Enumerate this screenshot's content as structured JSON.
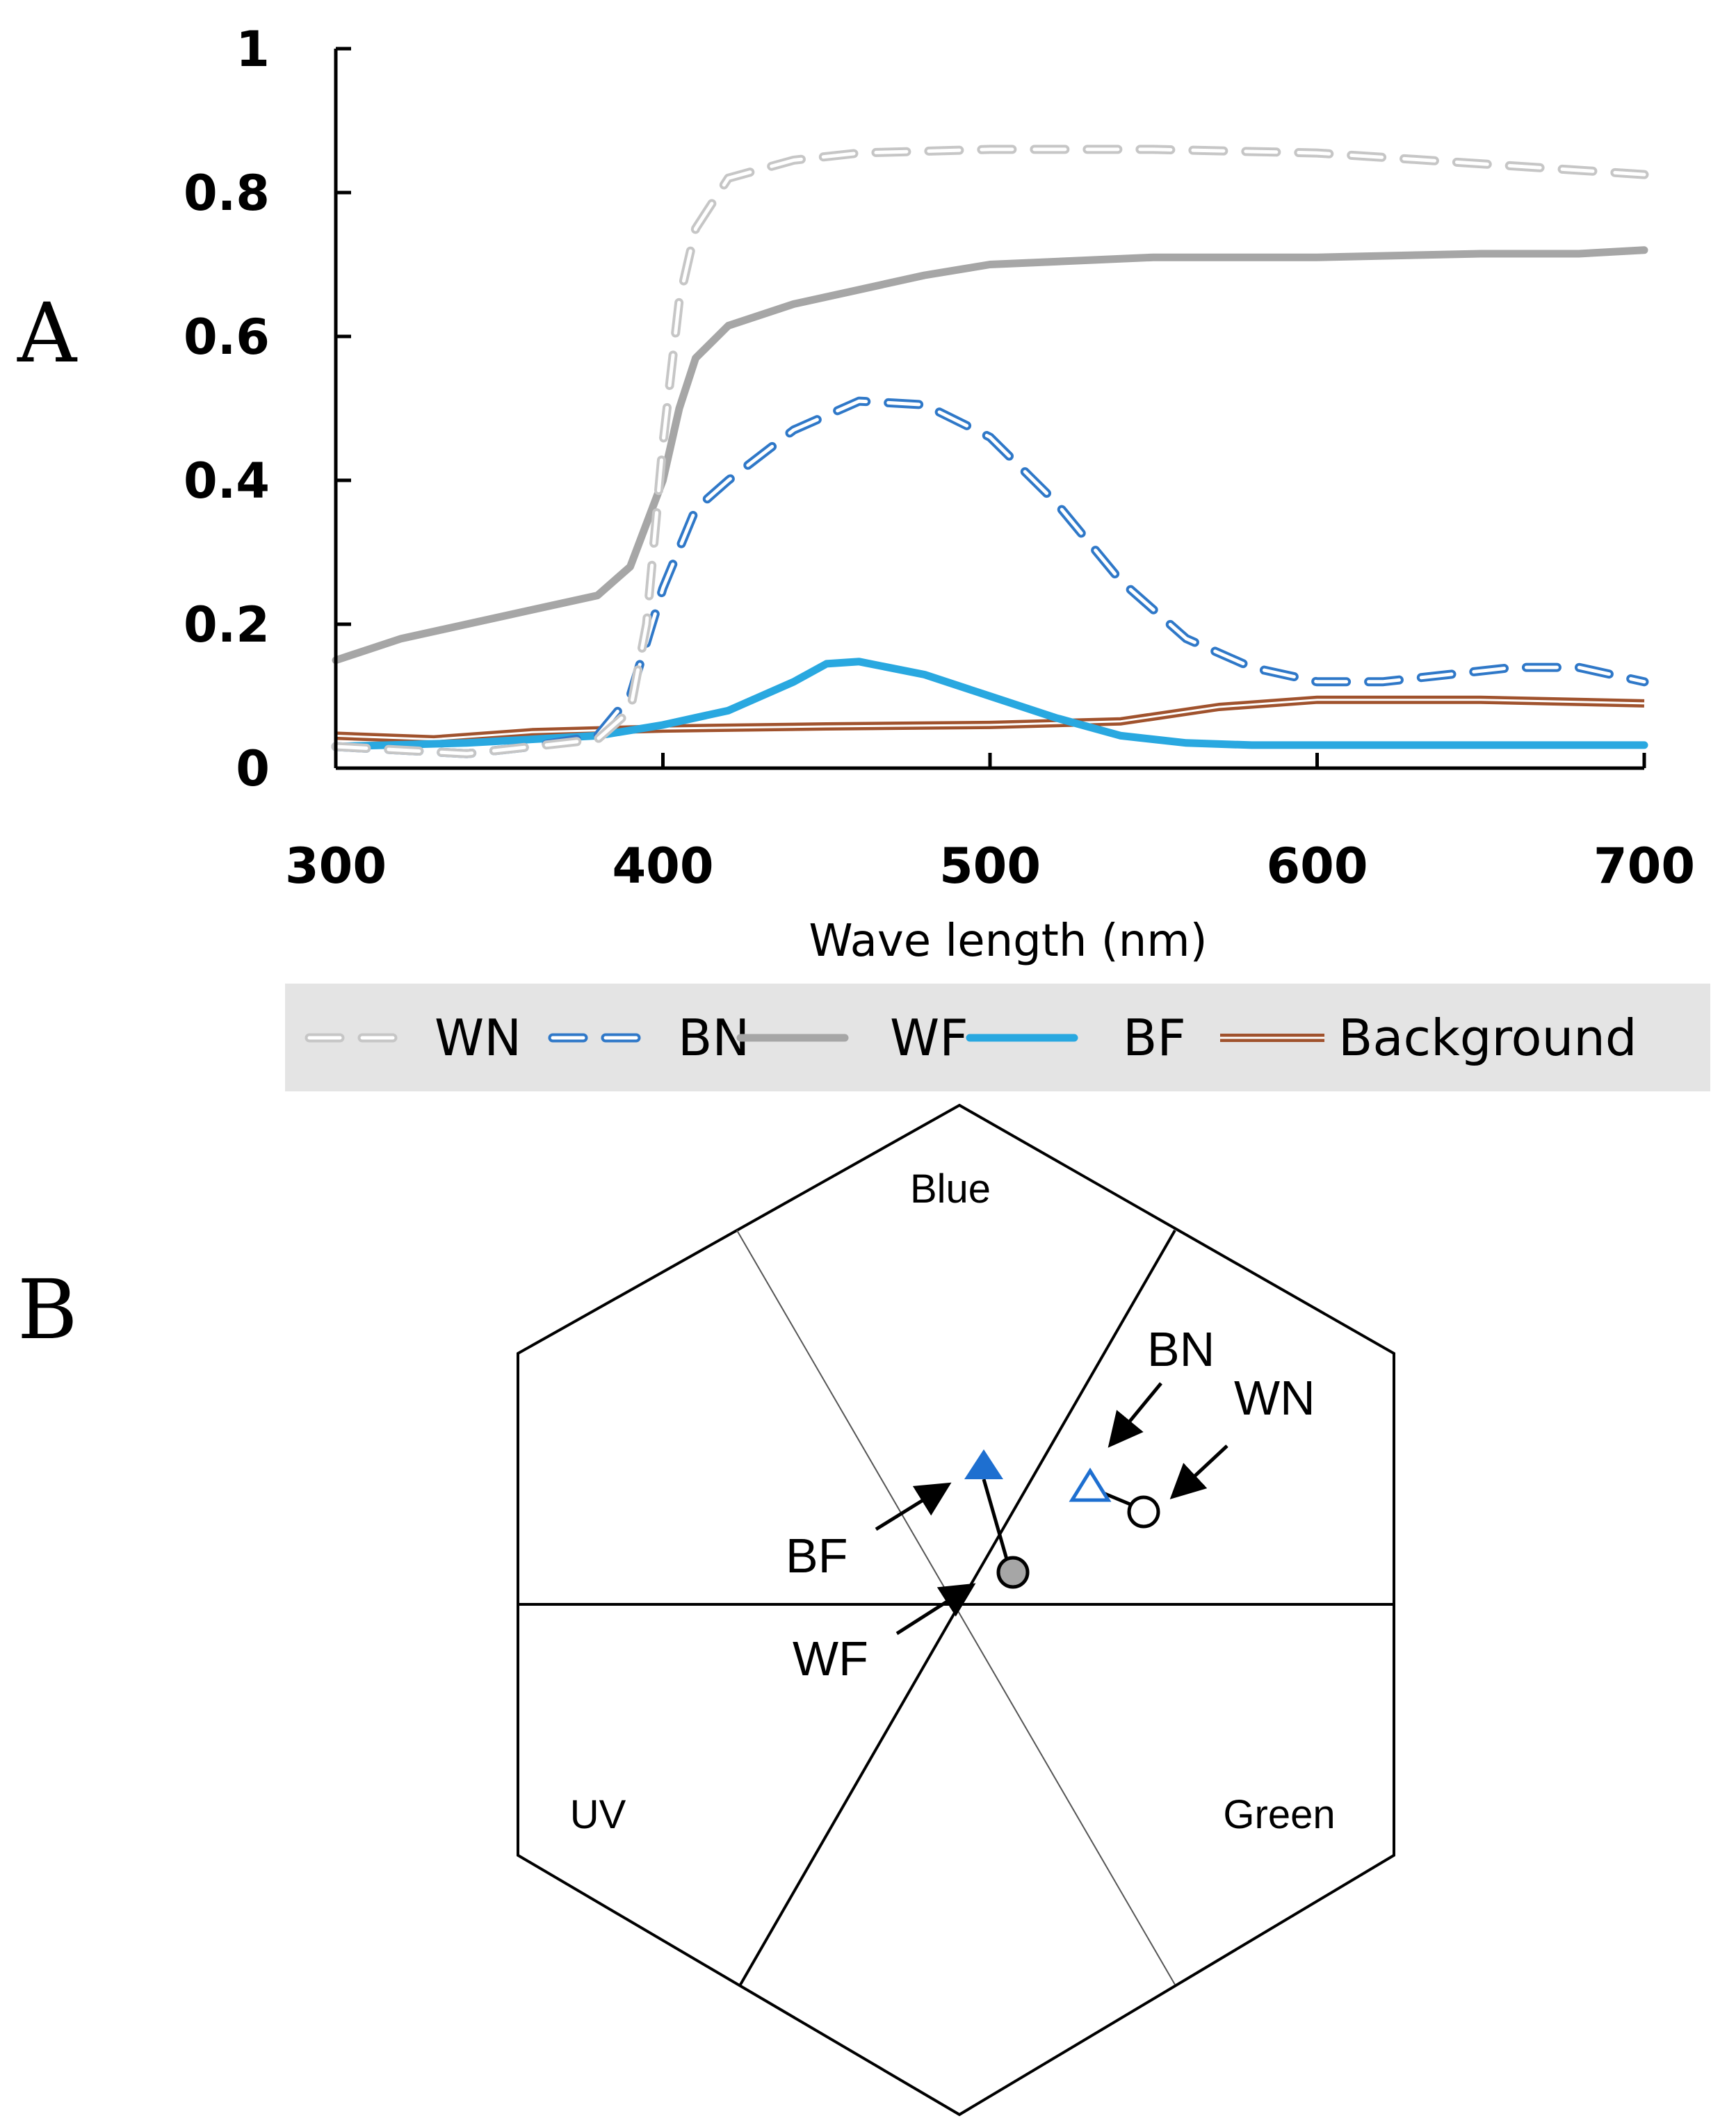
{
  "panels": {
    "a": "A",
    "b": "B"
  },
  "colors": {
    "WN": "#c6c6c6",
    "BN": "#2f78c8",
    "WF": "#a6a6a6",
    "BF": "#29a8e0",
    "Background": "#a0522d",
    "legend_bg": "#e4e4e4"
  },
  "chart_data": [
    {
      "type": "line",
      "title": "",
      "xlabel": "Wave length (nm)",
      "ylabel": "",
      "xlim": [
        300,
        700
      ],
      "ylim": [
        0,
        1
      ],
      "xticks": [
        300,
        400,
        500,
        600,
        700
      ],
      "yticks": [
        0,
        0.2,
        0.4,
        0.6,
        0.8,
        1
      ],
      "ytick_labels": [
        "0",
        "0.2",
        "0.4",
        "0.6",
        "0.8",
        "1"
      ],
      "legend_position": "bottom",
      "series": [
        {
          "name": "WN",
          "style": "dashed-outline",
          "x": [
            300,
            320,
            340,
            360,
            380,
            390,
            395,
            400,
            405,
            410,
            420,
            440,
            460,
            500,
            550,
            600,
            650,
            700
          ],
          "y": [
            0.03,
            0.025,
            0.02,
            0.03,
            0.04,
            0.08,
            0.2,
            0.45,
            0.65,
            0.75,
            0.82,
            0.845,
            0.855,
            0.86,
            0.86,
            0.855,
            0.84,
            0.825
          ]
        },
        {
          "name": "BN",
          "style": "dashed-outline",
          "x": [
            300,
            320,
            340,
            360,
            380,
            390,
            400,
            410,
            420,
            440,
            460,
            480,
            500,
            520,
            540,
            560,
            580,
            600,
            620,
            640,
            660,
            680,
            700
          ],
          "y": [
            0.03,
            0.025,
            0.02,
            0.03,
            0.045,
            0.1,
            0.25,
            0.36,
            0.4,
            0.47,
            0.51,
            0.505,
            0.46,
            0.37,
            0.26,
            0.18,
            0.14,
            0.12,
            0.12,
            0.13,
            0.14,
            0.14,
            0.12
          ]
        },
        {
          "name": "WF",
          "style": "solid",
          "x": [
            300,
            320,
            340,
            360,
            380,
            390,
            400,
            405,
            410,
            420,
            440,
            460,
            480,
            500,
            550,
            600,
            650,
            680,
            700
          ],
          "y": [
            0.15,
            0.18,
            0.2,
            0.22,
            0.24,
            0.28,
            0.4,
            0.5,
            0.57,
            0.615,
            0.645,
            0.665,
            0.685,
            0.7,
            0.71,
            0.71,
            0.715,
            0.715,
            0.72
          ]
        },
        {
          "name": "BF",
          "style": "solid",
          "x": [
            300,
            340,
            380,
            400,
            420,
            440,
            450,
            460,
            480,
            500,
            520,
            540,
            560,
            580,
            600,
            650,
            700
          ],
          "y": [
            0.03,
            0.035,
            0.045,
            0.06,
            0.08,
            0.12,
            0.145,
            0.148,
            0.13,
            0.1,
            0.07,
            0.045,
            0.035,
            0.032,
            0.032,
            0.032,
            0.032
          ]
        },
        {
          "name": "Background",
          "style": "double",
          "x": [
            300,
            330,
            360,
            400,
            450,
            500,
            540,
            570,
            600,
            650,
            700
          ],
          "y": [
            0.045,
            0.04,
            0.05,
            0.055,
            0.058,
            0.06,
            0.065,
            0.085,
            0.095,
            0.095,
            0.09
          ]
        }
      ]
    },
    {
      "type": "scatter",
      "subtype": "color-hexagon",
      "title": "",
      "xlim": [
        -1,
        1
      ],
      "ylim": [
        -1,
        1
      ],
      "sector_labels": [
        "Blue",
        "UV",
        "Green"
      ],
      "points": [
        {
          "name": "BN",
          "marker": "open-triangle",
          "x": 0.28,
          "y": 0.26
        },
        {
          "name": "WN",
          "marker": "open-circle",
          "x": 0.4,
          "y": 0.22
        },
        {
          "name": "BF",
          "marker": "filled-triangle",
          "x": 0.04,
          "y": 0.33
        },
        {
          "name": "WF",
          "marker": "filled-circle",
          "x": 0.12,
          "y": 0.07
        }
      ]
    }
  ]
}
